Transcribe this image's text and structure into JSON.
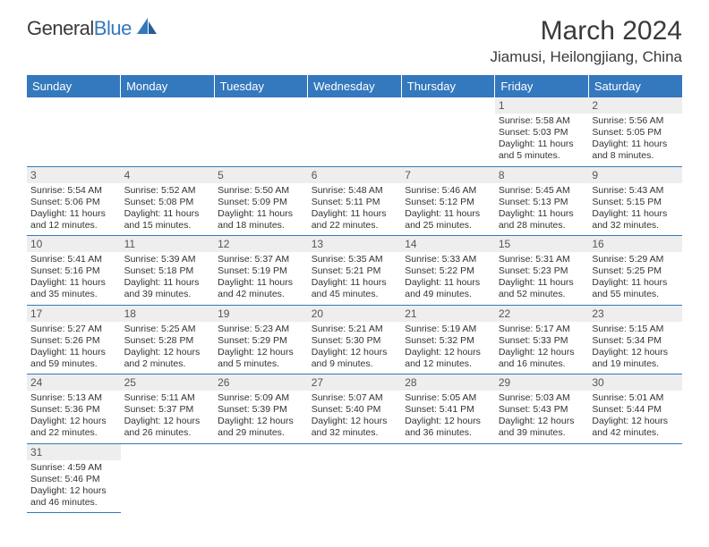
{
  "brand": {
    "name_part1": "General",
    "name_part2": "Blue"
  },
  "title": "March 2024",
  "location": "Jiamusi, Heilongjiang, China",
  "colors": {
    "header_bg": "#3478bd",
    "header_text": "#ffffff",
    "daynum_bg": "#eeeeee",
    "text": "#333333",
    "border": "#3478bd"
  },
  "weekdays": [
    "Sunday",
    "Monday",
    "Tuesday",
    "Wednesday",
    "Thursday",
    "Friday",
    "Saturday"
  ],
  "weeks": [
    [
      null,
      null,
      null,
      null,
      null,
      {
        "n": "1",
        "sr": "Sunrise: 5:58 AM",
        "ss": "Sunset: 5:03 PM",
        "dl": "Daylight: 11 hours and 5 minutes."
      },
      {
        "n": "2",
        "sr": "Sunrise: 5:56 AM",
        "ss": "Sunset: 5:05 PM",
        "dl": "Daylight: 11 hours and 8 minutes."
      }
    ],
    [
      {
        "n": "3",
        "sr": "Sunrise: 5:54 AM",
        "ss": "Sunset: 5:06 PM",
        "dl": "Daylight: 11 hours and 12 minutes."
      },
      {
        "n": "4",
        "sr": "Sunrise: 5:52 AM",
        "ss": "Sunset: 5:08 PM",
        "dl": "Daylight: 11 hours and 15 minutes."
      },
      {
        "n": "5",
        "sr": "Sunrise: 5:50 AM",
        "ss": "Sunset: 5:09 PM",
        "dl": "Daylight: 11 hours and 18 minutes."
      },
      {
        "n": "6",
        "sr": "Sunrise: 5:48 AM",
        "ss": "Sunset: 5:11 PM",
        "dl": "Daylight: 11 hours and 22 minutes."
      },
      {
        "n": "7",
        "sr": "Sunrise: 5:46 AM",
        "ss": "Sunset: 5:12 PM",
        "dl": "Daylight: 11 hours and 25 minutes."
      },
      {
        "n": "8",
        "sr": "Sunrise: 5:45 AM",
        "ss": "Sunset: 5:13 PM",
        "dl": "Daylight: 11 hours and 28 minutes."
      },
      {
        "n": "9",
        "sr": "Sunrise: 5:43 AM",
        "ss": "Sunset: 5:15 PM",
        "dl": "Daylight: 11 hours and 32 minutes."
      }
    ],
    [
      {
        "n": "10",
        "sr": "Sunrise: 5:41 AM",
        "ss": "Sunset: 5:16 PM",
        "dl": "Daylight: 11 hours and 35 minutes."
      },
      {
        "n": "11",
        "sr": "Sunrise: 5:39 AM",
        "ss": "Sunset: 5:18 PM",
        "dl": "Daylight: 11 hours and 39 minutes."
      },
      {
        "n": "12",
        "sr": "Sunrise: 5:37 AM",
        "ss": "Sunset: 5:19 PM",
        "dl": "Daylight: 11 hours and 42 minutes."
      },
      {
        "n": "13",
        "sr": "Sunrise: 5:35 AM",
        "ss": "Sunset: 5:21 PM",
        "dl": "Daylight: 11 hours and 45 minutes."
      },
      {
        "n": "14",
        "sr": "Sunrise: 5:33 AM",
        "ss": "Sunset: 5:22 PM",
        "dl": "Daylight: 11 hours and 49 minutes."
      },
      {
        "n": "15",
        "sr": "Sunrise: 5:31 AM",
        "ss": "Sunset: 5:23 PM",
        "dl": "Daylight: 11 hours and 52 minutes."
      },
      {
        "n": "16",
        "sr": "Sunrise: 5:29 AM",
        "ss": "Sunset: 5:25 PM",
        "dl": "Daylight: 11 hours and 55 minutes."
      }
    ],
    [
      {
        "n": "17",
        "sr": "Sunrise: 5:27 AM",
        "ss": "Sunset: 5:26 PM",
        "dl": "Daylight: 11 hours and 59 minutes."
      },
      {
        "n": "18",
        "sr": "Sunrise: 5:25 AM",
        "ss": "Sunset: 5:28 PM",
        "dl": "Daylight: 12 hours and 2 minutes."
      },
      {
        "n": "19",
        "sr": "Sunrise: 5:23 AM",
        "ss": "Sunset: 5:29 PM",
        "dl": "Daylight: 12 hours and 5 minutes."
      },
      {
        "n": "20",
        "sr": "Sunrise: 5:21 AM",
        "ss": "Sunset: 5:30 PM",
        "dl": "Daylight: 12 hours and 9 minutes."
      },
      {
        "n": "21",
        "sr": "Sunrise: 5:19 AM",
        "ss": "Sunset: 5:32 PM",
        "dl": "Daylight: 12 hours and 12 minutes."
      },
      {
        "n": "22",
        "sr": "Sunrise: 5:17 AM",
        "ss": "Sunset: 5:33 PM",
        "dl": "Daylight: 12 hours and 16 minutes."
      },
      {
        "n": "23",
        "sr": "Sunrise: 5:15 AM",
        "ss": "Sunset: 5:34 PM",
        "dl": "Daylight: 12 hours and 19 minutes."
      }
    ],
    [
      {
        "n": "24",
        "sr": "Sunrise: 5:13 AM",
        "ss": "Sunset: 5:36 PM",
        "dl": "Daylight: 12 hours and 22 minutes."
      },
      {
        "n": "25",
        "sr": "Sunrise: 5:11 AM",
        "ss": "Sunset: 5:37 PM",
        "dl": "Daylight: 12 hours and 26 minutes."
      },
      {
        "n": "26",
        "sr": "Sunrise: 5:09 AM",
        "ss": "Sunset: 5:39 PM",
        "dl": "Daylight: 12 hours and 29 minutes."
      },
      {
        "n": "27",
        "sr": "Sunrise: 5:07 AM",
        "ss": "Sunset: 5:40 PM",
        "dl": "Daylight: 12 hours and 32 minutes."
      },
      {
        "n": "28",
        "sr": "Sunrise: 5:05 AM",
        "ss": "Sunset: 5:41 PM",
        "dl": "Daylight: 12 hours and 36 minutes."
      },
      {
        "n": "29",
        "sr": "Sunrise: 5:03 AM",
        "ss": "Sunset: 5:43 PM",
        "dl": "Daylight: 12 hours and 39 minutes."
      },
      {
        "n": "30",
        "sr": "Sunrise: 5:01 AM",
        "ss": "Sunset: 5:44 PM",
        "dl": "Daylight: 12 hours and 42 minutes."
      }
    ],
    [
      {
        "n": "31",
        "sr": "Sunrise: 4:59 AM",
        "ss": "Sunset: 5:46 PM",
        "dl": "Daylight: 12 hours and 46 minutes."
      },
      null,
      null,
      null,
      null,
      null,
      null
    ]
  ]
}
